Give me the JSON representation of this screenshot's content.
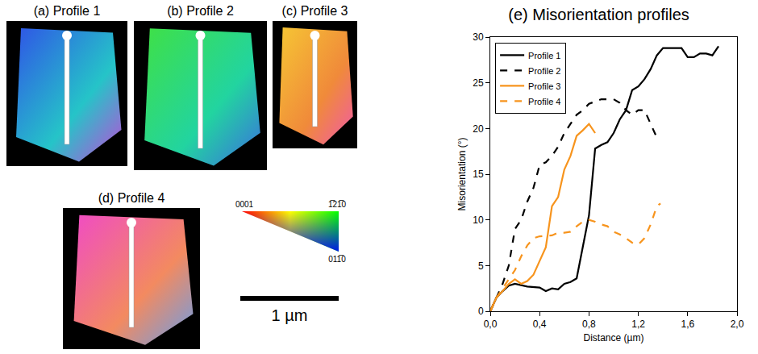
{
  "panels": [
    {
      "title": "(a) Profile 1"
    },
    {
      "title": "(b) Profile 2"
    },
    {
      "title": "(c) Profile 3"
    },
    {
      "title": "(d) Profile 4"
    }
  ],
  "color_key": {
    "labels": [
      "0001",
      "1̅21̅0",
      "011̅0"
    ]
  },
  "scale_bar": "1 µm",
  "chart_data": {
    "type": "line",
    "title": "(e) Misorientation profiles",
    "x_label": "Distance (µm)",
    "y_label": "Misorientation (°)",
    "xlim": [
      0,
      2.0
    ],
    "xticks": [
      {
        "value": 0,
        "label": "0,0"
      },
      {
        "value": 0.4,
        "label": "0,4"
      },
      {
        "value": 0.8,
        "label": "0,8"
      },
      {
        "value": 1.2,
        "label": "1,2"
      },
      {
        "value": 1.6,
        "label": "1,6"
      },
      {
        "value": 2.0,
        "label": "2,0"
      }
    ],
    "ylim": [
      0,
      30
    ],
    "yticks": [
      0,
      5,
      10,
      15,
      20,
      25,
      30
    ],
    "grid": false,
    "legend": "top left",
    "series": [
      {
        "name": "Profile 1",
        "color": "#000000",
        "line_style": "solid",
        "x": [
          0,
          0.05,
          0.1,
          0.15,
          0.2,
          0.3,
          0.4,
          0.45,
          0.5,
          0.55,
          0.6,
          0.65,
          0.7,
          0.75,
          0.8,
          0.85,
          0.9,
          0.95,
          1.0,
          1.05,
          1.1,
          1.15,
          1.2,
          1.25,
          1.3,
          1.35,
          1.4,
          1.45,
          1.5,
          1.55,
          1.6,
          1.65,
          1.7,
          1.75,
          1.8,
          1.85
        ],
        "values": [
          0,
          1.5,
          2.2,
          2.8,
          3.0,
          2.7,
          2.6,
          2.2,
          2.5,
          2.4,
          3.0,
          3.2,
          3.6,
          7.0,
          10.5,
          17.8,
          18.2,
          18.5,
          19.5,
          21.0,
          22.0,
          24.2,
          24.6,
          25.4,
          26.5,
          28.0,
          28.8,
          28.8,
          28.8,
          28.8,
          27.8,
          27.8,
          28.2,
          28.2,
          28.0,
          29.0
        ]
      },
      {
        "name": "Profile 2",
        "color": "#000000",
        "line_style": "dash",
        "x": [
          0,
          0.05,
          0.1,
          0.15,
          0.2,
          0.25,
          0.3,
          0.35,
          0.4,
          0.45,
          0.5,
          0.55,
          0.6,
          0.65,
          0.7,
          0.75,
          0.8,
          0.9,
          1.0,
          1.05,
          1.1,
          1.15,
          1.2,
          1.25,
          1.3,
          1.35
        ],
        "values": [
          0,
          1.5,
          3.0,
          5.0,
          9.0,
          10.0,
          12.0,
          13.5,
          16.0,
          16.3,
          17.0,
          18.0,
          19.5,
          20.5,
          21.5,
          22.0,
          22.7,
          23.2,
          23.2,
          22.8,
          22.0,
          21.5,
          22.0,
          22.0,
          20.5,
          19.0
        ]
      },
      {
        "name": "Profile 3",
        "color": "#f7941d",
        "line_style": "solid",
        "x": [
          0,
          0.05,
          0.1,
          0.15,
          0.2,
          0.25,
          0.3,
          0.35,
          0.4,
          0.45,
          0.5,
          0.55,
          0.6,
          0.65,
          0.7,
          0.75,
          0.8,
          0.85
        ],
        "values": [
          0,
          1.5,
          2.2,
          3.0,
          3.5,
          3.0,
          3.3,
          4.0,
          5.5,
          7.0,
          11.5,
          12.5,
          15.5,
          17.0,
          19.2,
          19.8,
          20.5,
          19.5
        ]
      },
      {
        "name": "Profile 4",
        "color": "#f7941d",
        "line_style": "dash",
        "x": [
          0,
          0.05,
          0.1,
          0.15,
          0.2,
          0.25,
          0.3,
          0.35,
          0.4,
          0.5,
          0.55,
          0.6,
          0.65,
          0.7,
          0.75,
          0.8,
          0.85,
          0.9,
          0.95,
          1.0,
          1.05,
          1.1,
          1.15,
          1.2,
          1.25,
          1.3,
          1.35,
          1.38
        ],
        "values": [
          0,
          1.5,
          2.5,
          3.5,
          4.5,
          6.0,
          7.2,
          8.0,
          8.2,
          8.3,
          8.6,
          8.6,
          8.7,
          9.3,
          9.8,
          10.0,
          9.8,
          9.5,
          9.3,
          8.7,
          8.4,
          8.0,
          7.5,
          7.3,
          8.0,
          9.5,
          11.5,
          11.8
        ]
      }
    ]
  }
}
